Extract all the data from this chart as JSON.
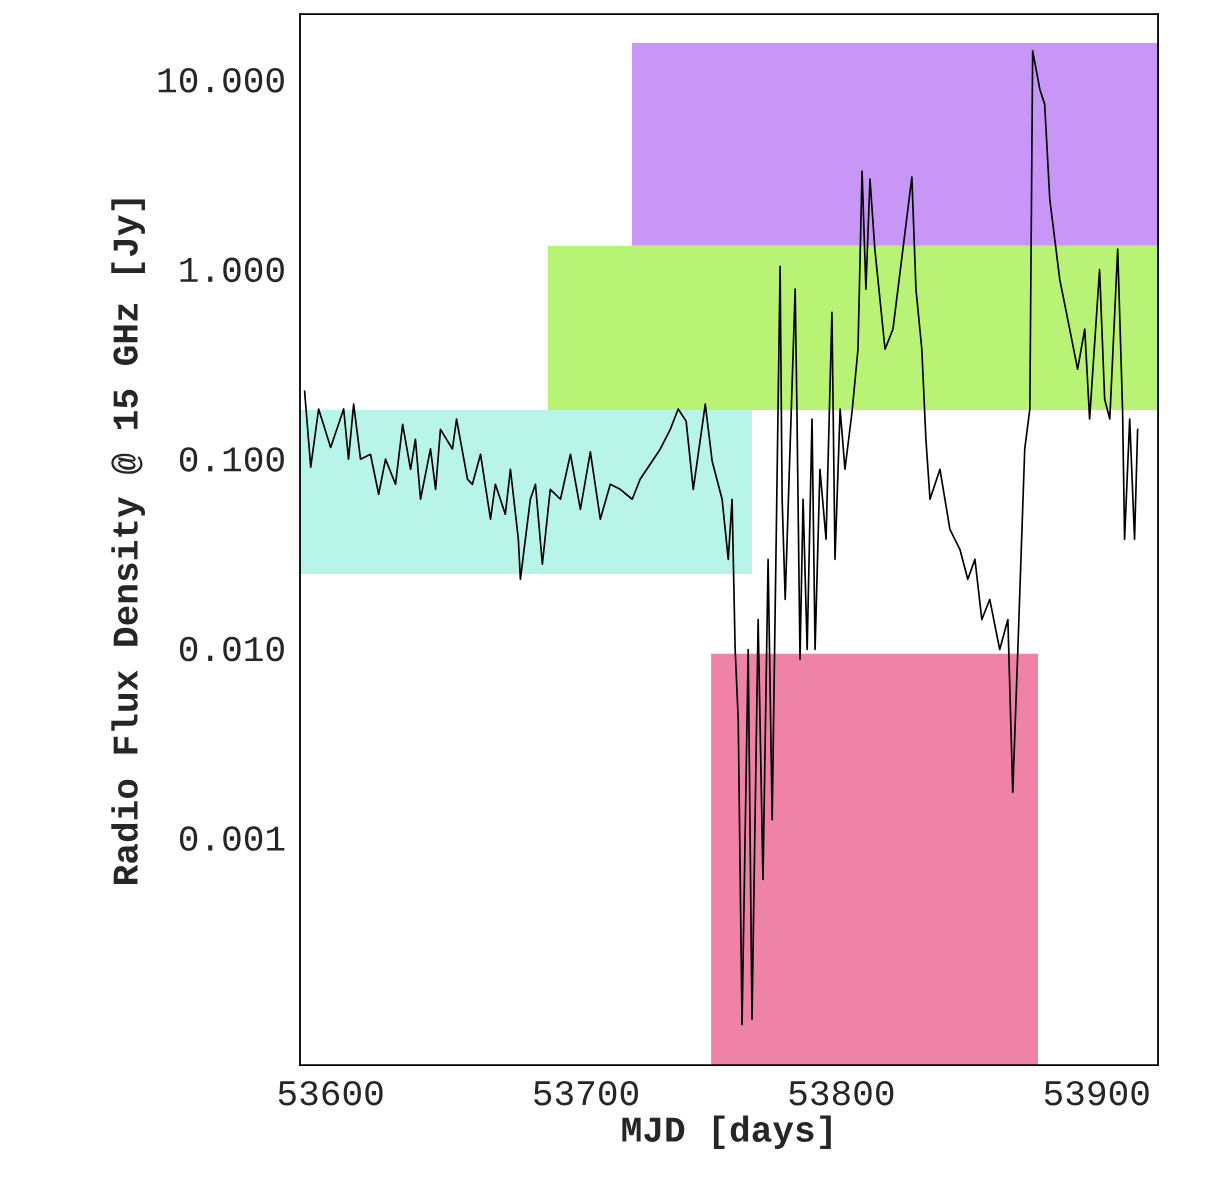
{
  "chart_data": {
    "type": "line",
    "xlabel": "MJD [days]",
    "ylabel": "Radio Flux Density @ 15 GHz [Jy]",
    "log": "y",
    "grid": false,
    "xlim": [
      53588,
      53924
    ],
    "xticks": [
      53600,
      53700,
      53800,
      53900
    ],
    "ylim": [
      6.3e-05,
      22
    ],
    "yticks": [
      {
        "value": 10,
        "label": "10.000"
      },
      {
        "value": 1,
        "label": "1.000"
      },
      {
        "value": 0.1,
        "label": "0.100"
      },
      {
        "value": 0.01,
        "label": "0.010"
      },
      {
        "value": 0.001,
        "label": "0.001"
      }
    ],
    "series": [
      {
        "color": "#000000",
        "x": [
          53589.8,
          53592.2,
          53595.3,
          53600,
          53605.1,
          53607,
          53609,
          53611.7,
          53615.6,
          53618.8,
          53621.5,
          53625.4,
          53628.2,
          53631.3,
          53633.2,
          53635.2,
          53639.1,
          53641.1,
          53643,
          53647.7,
          53649.3,
          53653.6,
          53655.5,
          53658.7,
          53662.6,
          53664.5,
          53668.4,
          53670.4,
          53673.5,
          53674.3,
          53678.2,
          53680.2,
          53682.9,
          53686,
          53690,
          53693.9,
          53697.8,
          53701.7,
          53705.6,
          53709.5,
          53713.4,
          53718.1,
          53721.2,
          53729.1,
          53733,
          53736.1,
          53739.2,
          53742,
          53746.7,
          53749.4,
          53753.3,
          53755.7,
          53757.2,
          53758.4,
          53759.6,
          53761.1,
          53763.5,
          53765,
          53767.4,
          53769.3,
          53771.3,
          53772.9,
          53775.2,
          53776,
          53776.8,
          53778,
          53781.9,
          53782.6,
          53783.8,
          53785,
          53786.6,
          53788.5,
          53789.7,
          53791.6,
          53794,
          53796.3,
          53797.5,
          53799.5,
          53801.4,
          53804.2,
          53806.5,
          53808.1,
          53809.6,
          53811.2,
          53813.1,
          53815.1,
          53817.1,
          53820.2,
          53827.6,
          53829.2,
          53831.5,
          53833.1,
          53834.7,
          53838.6,
          53842.5,
          53846.4,
          53849.5,
          53852.3,
          53855,
          53858.1,
          53862,
          53865.2,
          53867.1,
          53869.1,
          53871.8,
          53873.8,
          53874.9,
          53877.7,
          53879.6,
          53881.6,
          53885.5,
          53889.4,
          53892.5,
          53895.3,
          53897.2,
          53901.1,
          53903.1,
          53905.1,
          53908.2,
          53910.1,
          53910.9,
          53912.9,
          53914.8,
          53916
        ],
        "values": [
          0.226,
          0.0897,
          0.182,
          0.114,
          0.182,
          0.0989,
          0.193,
          0.0989,
          0.105,
          0.0646,
          0.0989,
          0.0729,
          0.151,
          0.0875,
          0.126,
          0.0608,
          0.112,
          0.0686,
          0.142,
          0.112,
          0.161,
          0.0775,
          0.0729,
          0.105,
          0.0477,
          0.0729,
          0.0507,
          0.0875,
          0.0374,
          0.023,
          0.0608,
          0.0729,
          0.0276,
          0.0686,
          0.0608,
          0.105,
          0.0538,
          0.108,
          0.0477,
          0.0729,
          0.0686,
          0.0608,
          0.0775,
          0.112,
          0.142,
          0.182,
          0.157,
          0.0686,
          0.193,
          0.0964,
          0.0608,
          0.0293,
          0.0608,
          0.0098,
          0.0042,
          0.000103,
          0.0098,
          0.00011,
          0.0141,
          0.0006,
          0.0293,
          0.00124,
          0.182,
          1.03,
          0.0608,
          0.018,
          0.78,
          0.177,
          0.0087,
          0.0608,
          0.0098,
          0.161,
          0.0098,
          0.0875,
          0.0374,
          0.589,
          0.0293,
          0.182,
          0.0875,
          0.177,
          0.376,
          3.27,
          0.78,
          2.97,
          1.27,
          0.69,
          0.376,
          0.48,
          3.04,
          0.78,
          0.376,
          0.126,
          0.0608,
          0.0875,
          0.0422,
          0.0331,
          0.023,
          0.0293,
          0.0141,
          0.018,
          0.0098,
          0.0141,
          0.00173,
          0.0098,
          0.112,
          0.182,
          14.1,
          8.85,
          7.38,
          2.33,
          0.88,
          0.48,
          0.295,
          0.48,
          0.161,
          0.99,
          0.205,
          0.161,
          1.27,
          0.182,
          0.0374,
          0.161,
          0.0374,
          0.142
        ]
      },
      {
        "type": "line",
        "color": "#b878f5",
        "x": [
          53718,
          53924
        ],
        "lower": [
          1.32,
          1.32
        ],
        "upper": [
          15.5,
          15.5
        ],
        "values": [
          null,
          null
        ]
      },
      {
        "type": "line",
        "color": "#a4f050",
        "x": [
          53685,
          53924
        ],
        "lower": [
          0.18,
          0.18
        ],
        "upper": [
          1.32,
          1.32
        ],
        "values": [
          null,
          null
        ]
      },
      {
        "type": "line",
        "color": "#a4f2e2",
        "x": [
          53588,
          53765
        ],
        "lower": [
          0.0245,
          0.0245
        ],
        "upper": [
          0.18,
          0.18
        ],
        "values": [
          null,
          null
        ]
      },
      {
        "type": "line",
        "color": "#e9608e",
        "x": [
          53749,
          53877
        ],
        "lower": [
          6.3e-05,
          6.3e-05
        ],
        "upper": [
          0.0093,
          0.0093
        ],
        "values": [
          null,
          null
        ]
      }
    ]
  }
}
